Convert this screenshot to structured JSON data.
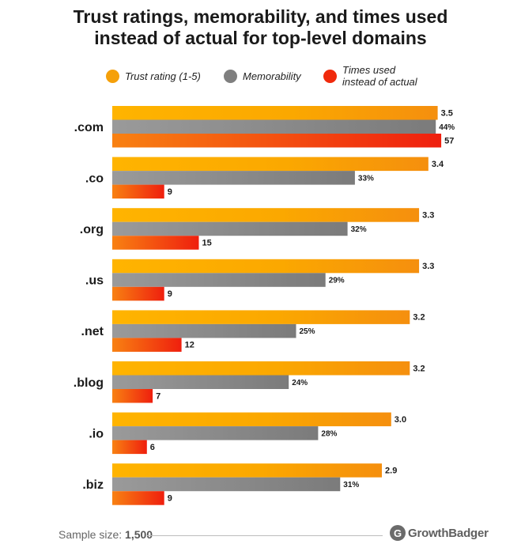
{
  "title_lines": [
    "Trust ratings, memorability, and times used",
    "instead of actual for top-level domains"
  ],
  "legend": [
    {
      "label": "Trust rating (1-5)",
      "color": "#F5A00A"
    },
    {
      "label": "Memorability",
      "color": "#7F7F7F"
    },
    {
      "label": "Times used\ninstead of actual",
      "color": "#F02A0C"
    }
  ],
  "chart_data": {
    "type": "bar",
    "orientation": "horizontal",
    "categories": [
      ".com",
      ".co",
      ".org",
      ".us",
      ".net",
      ".blog",
      ".io",
      ".biz"
    ],
    "series": [
      {
        "name": "Trust rating (1-5)",
        "values": [
          3.5,
          3.4,
          3.3,
          3.3,
          3.2,
          3.2,
          3.0,
          2.9
        ],
        "labels": [
          "3.5",
          "3.4",
          "3.3",
          "3.3",
          "3.2",
          "3.2",
          "3.0",
          "2.9"
        ],
        "color": "#F5A00A"
      },
      {
        "name": "Memorability",
        "values": [
          44,
          33,
          32,
          29,
          25,
          24,
          28,
          31
        ],
        "labels": [
          "44%",
          "33%",
          "32%",
          "29%",
          "25%",
          "24%",
          "28%",
          "31%"
        ],
        "color": "#7F7F7F"
      },
      {
        "name": "Times used instead of actual",
        "values": [
          57,
          9,
          15,
          9,
          12,
          7,
          6,
          9
        ],
        "labels": [
          "57",
          "9",
          "15",
          "9",
          "12",
          "7",
          "6",
          "9"
        ],
        "color": "#F02A0C"
      }
    ],
    "grid": false,
    "legend_position": "top"
  },
  "footer": {
    "sample_label": "Sample size:",
    "sample_value": "1,500"
  },
  "brand": {
    "icon_letter": "G",
    "name": "GrowthBadger"
  }
}
